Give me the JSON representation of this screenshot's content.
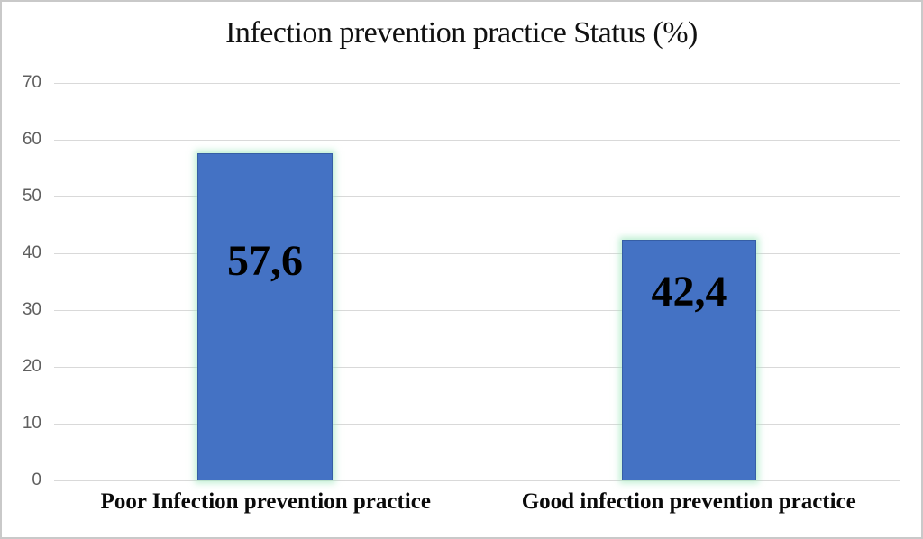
{
  "chart_data": {
    "type": "bar",
    "title": "Infection prevention practice Status (%)",
    "categories": [
      "Poor Infection prevention practice",
      "Good infection prevention practice"
    ],
    "values": [
      57.6,
      42.4
    ],
    "value_labels": [
      "57,6",
      "42,4"
    ],
    "xlabel": "",
    "ylabel": "",
    "ylim": [
      0,
      70
    ],
    "yticks": [
      "70",
      "60",
      "50",
      "40",
      "30",
      "20",
      "10",
      "0"
    ],
    "ytick_values": [
      70,
      60,
      50,
      40,
      30,
      20,
      10,
      0
    ],
    "grid": "horizontal",
    "legend": "none",
    "bar_color": "#4472c4",
    "bar_glow_color": "#9ce7bc",
    "gridline_color": "#d9d9d9",
    "tick_label_color": "#5f5f5f",
    "frame_color": "#c9c9c9"
  }
}
